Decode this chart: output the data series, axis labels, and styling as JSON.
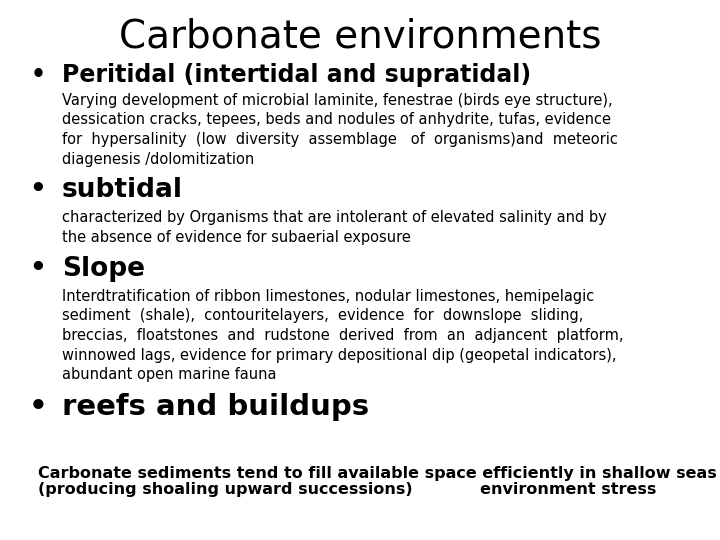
{
  "title": "Carbonate environments",
  "title_fontsize": 28,
  "background_color": "#ffffff",
  "text_color": "#000000",
  "bullet_items": [
    {
      "bullet": "Peritidal (intertidal and supratidal)",
      "bullet_fontsize": 17,
      "body_lines": [
        "Varying development of microbial laminite, fenestrae (birds eye structure),",
        "dessication cracks, tepees, beds and nodules of anhydrite, tufas, evidence",
        "for  hypersalinity  (low  diversity  assemblage   of  organisms)and  meteoric",
        "diagenesis /dolomitization"
      ],
      "body_fontsize": 10.5
    },
    {
      "bullet": "subtidal",
      "bullet_fontsize": 19,
      "body_lines": [
        "characterized by Organisms that are intolerant of elevated salinity and by",
        "the absence of evidence for subaerial exposure"
      ],
      "body_fontsize": 10.5
    },
    {
      "bullet": "Slope",
      "bullet_fontsize": 19,
      "body_lines": [
        "Interdtratification of ribbon limestones, nodular limestones, hemipelagic",
        "sediment  (shale),  contouritelayers,  evidence  for  downslope  sliding,",
        "breccias,  floatstones  and  rudstone  derived  from  an  adjancent  platform,",
        "winnowed lags, evidence for primary depositional dip (geopetal indicators),",
        "abundant open marine fauna"
      ],
      "body_fontsize": 10.5
    },
    {
      "bullet": "reefs and buildups",
      "bullet_fontsize": 21,
      "body_lines": [],
      "body_fontsize": 10.5
    }
  ],
  "footer_line1": "Carbonate sediments tend to fill available space efficiently in shallow seas",
  "footer_line2": "(producing shoaling upward successions)            environment stress",
  "footer_fontsize": 11.5
}
